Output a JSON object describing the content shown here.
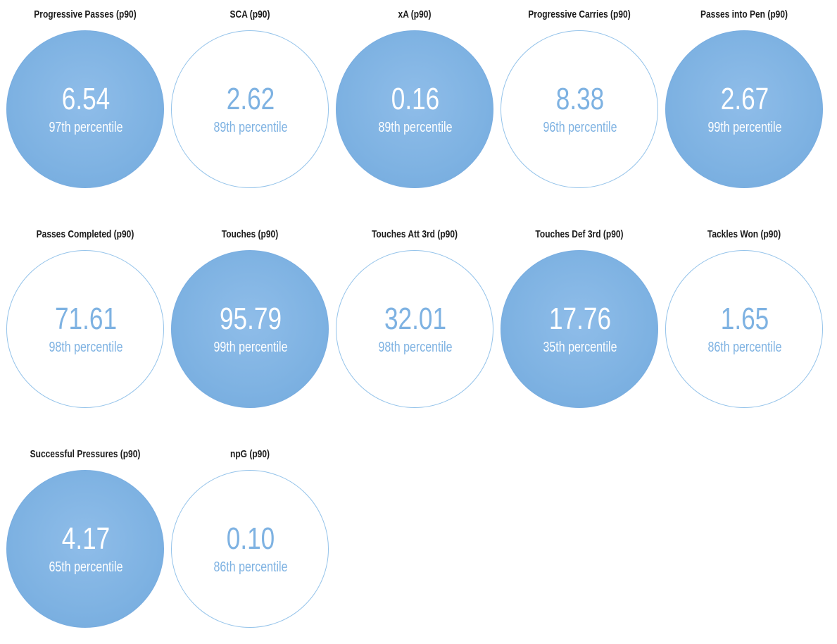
{
  "stats": [
    {
      "title": "Progressive Passes (p90)",
      "value": "6.54",
      "percentile": "97th percentile",
      "style": "filled"
    },
    {
      "title": "SCA (p90)",
      "value": "2.62",
      "percentile": "89th percentile",
      "style": "outline"
    },
    {
      "title": "xA (p90)",
      "value": "0.16",
      "percentile": "89th percentile",
      "style": "filled"
    },
    {
      "title": "Progressive Carries (p90)",
      "value": "8.38",
      "percentile": "96th percentile",
      "style": "outline"
    },
    {
      "title": "Passes into Pen (p90)",
      "value": "2.67",
      "percentile": "99th percentile",
      "style": "filled"
    },
    {
      "title": "Passes Completed (p90)",
      "value": "71.61",
      "percentile": "98th percentile",
      "style": "outline"
    },
    {
      "title": "Touches (p90)",
      "value": "95.79",
      "percentile": "99th percentile",
      "style": "filled"
    },
    {
      "title": "Touches Att 3rd (p90)",
      "value": "32.01",
      "percentile": "98th percentile",
      "style": "outline"
    },
    {
      "title": "Touches Def 3rd (p90)",
      "value": "17.76",
      "percentile": "35th percentile",
      "style": "filled"
    },
    {
      "title": "Tackles Won (p90)",
      "value": "1.65",
      "percentile": "86th percentile",
      "style": "outline"
    },
    {
      "title": "Successful Pressures (p90)",
      "value": "4.17",
      "percentile": "65th percentile",
      "style": "filled"
    },
    {
      "title": "npG (p90)",
      "value": "0.10",
      "percentile": "86th percentile",
      "style": "outline"
    }
  ],
  "colors": {
    "bubble_fill": "#7eb2e2",
    "bubble_outline": "#94c3ea",
    "outline_text": "#7eb2e2",
    "filled_text": "#ffffff",
    "title_text": "#1a1a1a"
  }
}
